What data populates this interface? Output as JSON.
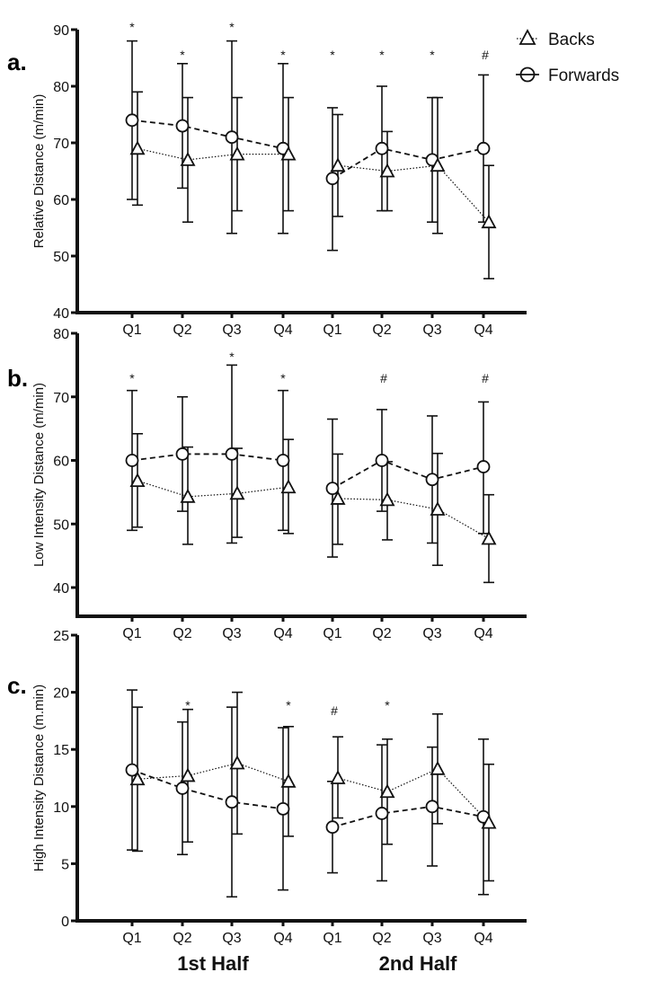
{
  "legend": [
    {
      "name": "Backs",
      "marker": "triangle",
      "line": "dotted"
    },
    {
      "name": "Forwards",
      "marker": "circle",
      "line": "dashed"
    }
  ],
  "x_groups": [
    "1st Half",
    "2nd Half"
  ],
  "colors": {
    "ink": "#111111",
    "background": "#ffffff"
  },
  "chart_data": [
    {
      "type": "line",
      "panel": "a.",
      "ylabel": "Relative Distance (m/min)",
      "xlabel": "",
      "ylim": [
        40,
        90
      ],
      "yticks": [
        40,
        50,
        60,
        70,
        80,
        90
      ],
      "categories": [
        "Q1",
        "Q2",
        "Q3",
        "Q4",
        "Q1",
        "Q2",
        "Q3",
        "Q4"
      ],
      "series": [
        {
          "name": "Forwards",
          "values": [
            74,
            73,
            71,
            69,
            63.7,
            69,
            67,
            69
          ],
          "error_low": [
            60,
            62,
            54,
            54,
            51,
            58,
            56,
            56
          ],
          "error_high": [
            88,
            84,
            88,
            84,
            76.2,
            80,
            78,
            82
          ]
        },
        {
          "name": "Backs",
          "values": [
            69,
            67,
            68,
            68,
            66,
            65,
            66,
            56
          ],
          "error_low": [
            59,
            56,
            58,
            58,
            57,
            58,
            54,
            46
          ],
          "error_high": [
            79,
            78,
            78,
            78,
            75,
            72,
            78,
            66
          ]
        }
      ],
      "annotations": [
        "*",
        "*",
        "*",
        "*",
        "*",
        "*",
        "*",
        "#"
      ]
    },
    {
      "type": "line",
      "panel": "b.",
      "ylabel": "Low Intensity Distance (m/min)",
      "xlabel": "",
      "ylim": [
        40,
        80
      ],
      "yticks": [
        40,
        50,
        60,
        70,
        80
      ],
      "categories": [
        "Q1",
        "Q2",
        "Q3",
        "Q4",
        "Q1",
        "Q2",
        "Q3",
        "Q4"
      ],
      "series": [
        {
          "name": "Forwards",
          "values": [
            60,
            61,
            61,
            60,
            55.6,
            60,
            57,
            59
          ],
          "error_low": [
            49,
            52,
            47,
            49,
            44.8,
            52,
            47,
            48.5
          ],
          "error_high": [
            71,
            70,
            75,
            71,
            66.5,
            68,
            67,
            69.2
          ]
        },
        {
          "name": "Backs",
          "values": [
            56.8,
            54.3,
            54.8,
            55.8,
            54,
            53.8,
            52.3,
            47.7
          ],
          "error_low": [
            49.5,
            46.8,
            47.9,
            48.5,
            46.8,
            47.5,
            43.5,
            40.8
          ],
          "error_high": [
            64.2,
            62.1,
            61.9,
            63.3,
            61,
            59.8,
            61.1,
            54.6
          ]
        }
      ],
      "annotations": [
        "*",
        "",
        "*",
        "*",
        "",
        "#",
        "",
        "#"
      ]
    },
    {
      "type": "line",
      "panel": "c.",
      "ylabel": "High Intensity Distance (m.min)",
      "xlabel": "",
      "ylim": [
        0,
        25
      ],
      "yticks": [
        0,
        5,
        10,
        15,
        20,
        25
      ],
      "categories": [
        "Q1",
        "Q2",
        "Q3",
        "Q4",
        "Q1",
        "Q2",
        "Q3",
        "Q4"
      ],
      "series": [
        {
          "name": "Forwards",
          "values": [
            13.2,
            11.6,
            10.4,
            9.8,
            8.2,
            9.4,
            10,
            9.1
          ],
          "error_low": [
            6.2,
            5.8,
            2.1,
            2.7,
            4.2,
            3.5,
            4.8,
            2.3
          ],
          "error_high": [
            20.2,
            17.4,
            18.7,
            16.9,
            12.2,
            15.4,
            15.2,
            15.9
          ]
        },
        {
          "name": "Backs",
          "values": [
            12.4,
            12.7,
            13.8,
            12.2,
            12.5,
            11.3,
            13.3,
            8.6
          ],
          "error_low": [
            6.1,
            6.9,
            7.6,
            7.4,
            9,
            6.7,
            8.5,
            3.5
          ],
          "error_high": [
            18.7,
            18.5,
            20,
            17,
            16.1,
            15.9,
            18.1,
            13.7
          ]
        }
      ],
      "annotations": [
        "",
        "*",
        "",
        "*",
        "#",
        "*",
        "",
        ""
      ]
    }
  ]
}
